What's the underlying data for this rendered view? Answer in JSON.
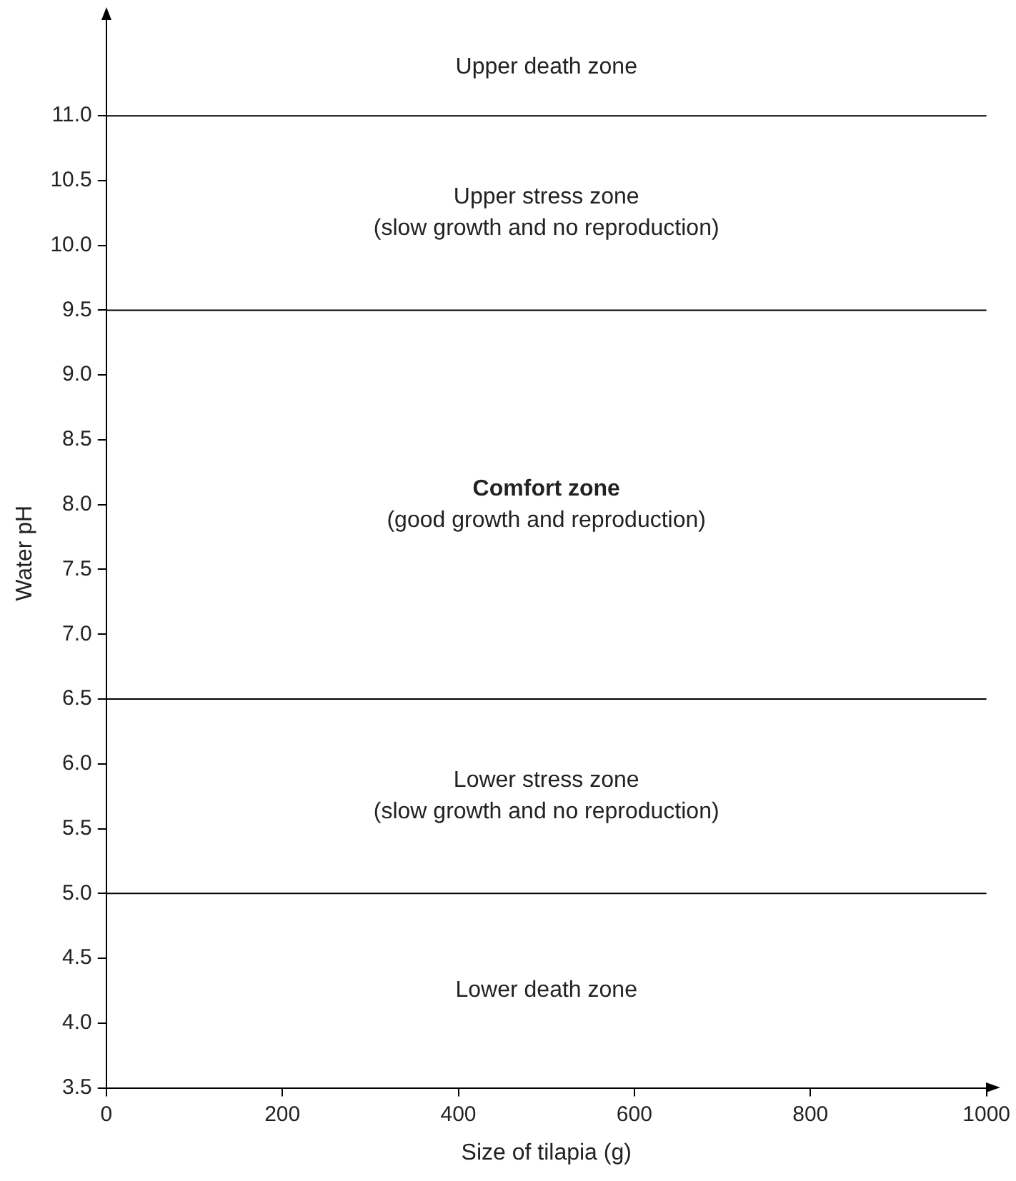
{
  "chart_data": {
    "type": "line",
    "xlabel": "Size of tilapia (g)",
    "ylabel": "Water pH",
    "xlim": [
      0,
      1000
    ],
    "xticks": [
      0,
      200,
      400,
      600,
      800,
      1000
    ],
    "ylim": [
      3.5,
      11.75
    ],
    "yticks": [
      {
        "value": 3.5,
        "label": "3.5"
      },
      {
        "value": 4,
        "label": "4.0"
      },
      {
        "value": 4.5,
        "label": "4.5"
      },
      {
        "value": 5,
        "label": "5.0"
      },
      {
        "value": 5.5,
        "label": "5.5"
      },
      {
        "value": 6,
        "label": "6.0"
      },
      {
        "value": 6.5,
        "label": "6.5"
      },
      {
        "value": 7,
        "label": "7.0"
      },
      {
        "value": 7.5,
        "label": "7.5"
      },
      {
        "value": 8,
        "label": "8.0"
      },
      {
        "value": 8.5,
        "label": "8.5"
      },
      {
        "value": 9,
        "label": "9.0"
      },
      {
        "value": 9.5,
        "label": "9.5"
      },
      {
        "value": 10,
        "label": "10.0"
      },
      {
        "value": 10.5,
        "label": "10.5"
      },
      {
        "value": 11,
        "label": "11.0"
      }
    ],
    "ref_lines": [
      {
        "axis": "y",
        "value": 5.0
      },
      {
        "axis": "y",
        "value": 6.5
      },
      {
        "axis": "y",
        "value": 9.5
      },
      {
        "axis": "y",
        "value": 11.0
      }
    ],
    "annotations": [
      "Upper death zone",
      "Upper stress zone\n(slow growth and no reproduction)",
      "Comfort zone\n(good growth and reproduction)",
      "Lower stress zone\n(slow growth and no reproduction)",
      "Lower death zone"
    ]
  }
}
